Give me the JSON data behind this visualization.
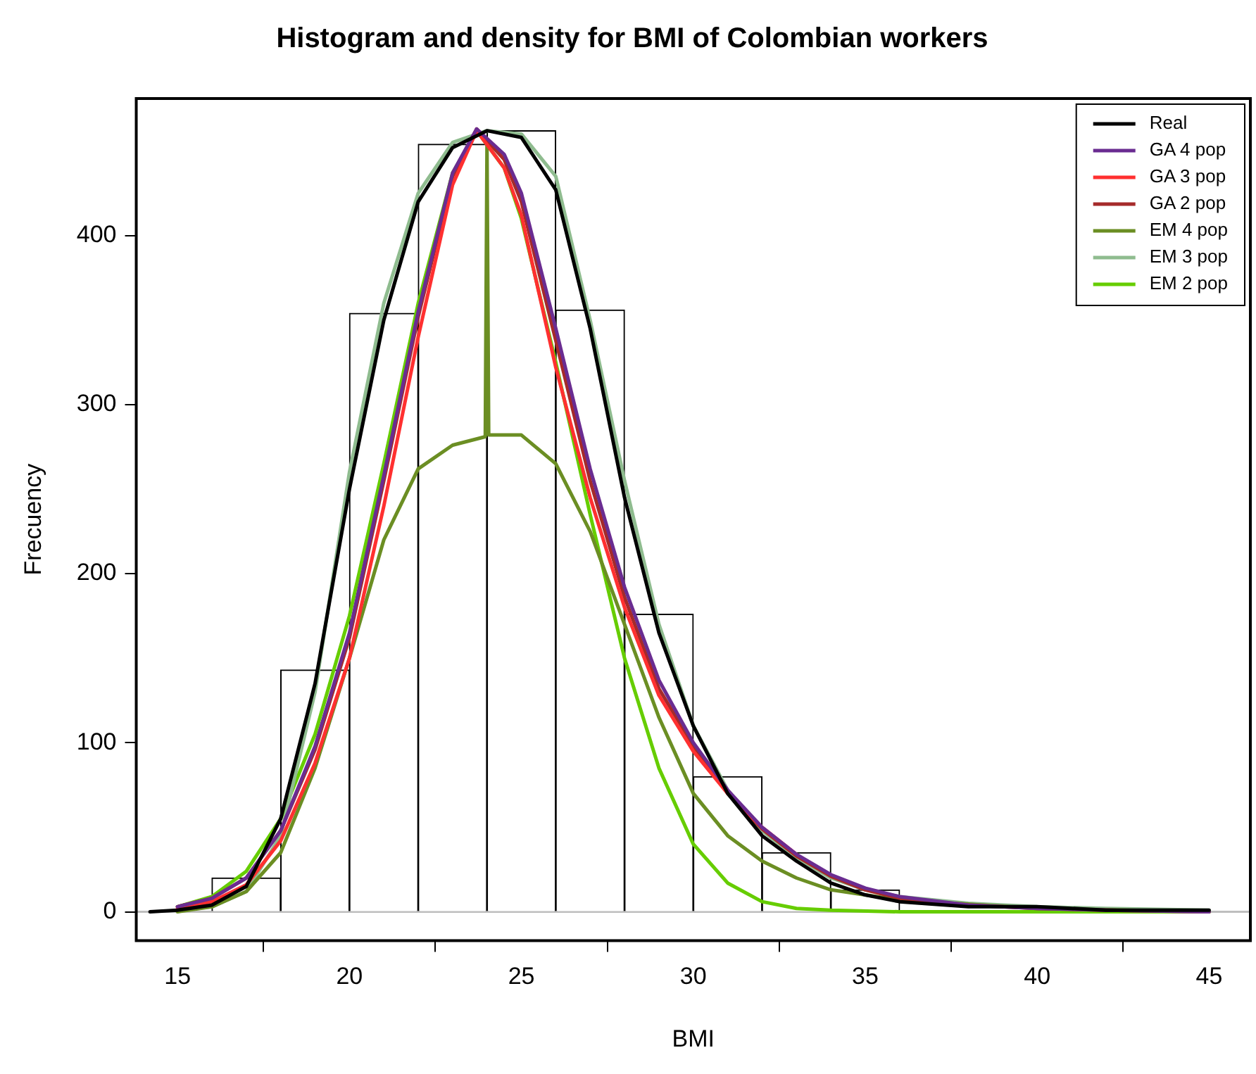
{
  "chart_data": {
    "type": "histogram",
    "title": "Histogram and density for BMI of Colombian workers",
    "xlabel": "BMI",
    "ylabel": "Frecuency",
    "bins": [
      16,
      18,
      20,
      22,
      24,
      26,
      28,
      30,
      32,
      34,
      36
    ],
    "values": [
      20,
      143,
      354,
      454,
      462,
      356,
      176,
      80,
      35,
      13
    ],
    "color": "#ffffff",
    "xlim": [
      13.8,
      46.2
    ],
    "xticks": [
      15,
      20,
      25,
      30,
      35,
      40,
      45
    ],
    "ylim": [
      -17,
      481
    ],
    "yticks": [
      0,
      100,
      200,
      300,
      400
    ],
    "grid": false,
    "legend": "top right",
    "line_style": "solid",
    "marker": "none",
    "ref_lines": [
      {
        "axis": "y",
        "value": 0,
        "color": "#bebebe"
      }
    ],
    "series": [
      {
        "name": "Real",
        "type": "line",
        "color": "#000000",
        "x": [
          14.2,
          15,
          16,
          17,
          18,
          19,
          20,
          21,
          22,
          23,
          24,
          25,
          26,
          27,
          28,
          29,
          30,
          31,
          32,
          33,
          34,
          35,
          36,
          38,
          40,
          42,
          45
        ],
        "values": [
          0,
          1,
          4,
          15,
          55,
          135,
          250,
          350,
          420,
          452,
          462,
          458,
          427,
          345,
          245,
          165,
          110,
          70,
          45,
          30,
          17,
          10,
          6,
          3,
          3,
          1,
          1
        ]
      },
      {
        "name": "GA 4 pop",
        "type": "line",
        "color": "#6a2c91",
        "x": [
          15,
          16,
          17,
          18,
          19,
          20,
          21,
          22,
          23,
          23.7,
          24.5,
          25,
          26,
          27,
          28,
          29,
          30,
          31,
          32,
          33,
          34,
          35,
          36,
          38,
          40,
          42,
          45
        ],
        "values": [
          3,
          8,
          20,
          48,
          98,
          165,
          258,
          355,
          437,
          463,
          448,
          425,
          345,
          262,
          192,
          137,
          100,
          72,
          50,
          34,
          22,
          14,
          9,
          4,
          2,
          1,
          0
        ]
      },
      {
        "name": "GA 3 pop",
        "type": "line",
        "color": "#ff3030",
        "x": [
          15,
          16,
          17,
          18,
          19,
          20,
          21,
          22,
          23,
          23.7,
          24.5,
          25,
          26,
          27,
          28,
          29,
          30,
          31,
          32,
          33
        ],
        "values": [
          2,
          6,
          16,
          42,
          88,
          150,
          240,
          340,
          430,
          462,
          440,
          412,
          322,
          245,
          180,
          128,
          95,
          70,
          50,
          34
        ]
      },
      {
        "name": "GA 2 pop",
        "type": "line",
        "color": "#a52a2a",
        "x": [
          15,
          16,
          17,
          18,
          19,
          20,
          21,
          22,
          23,
          23.7,
          24.5,
          25,
          26,
          27,
          28,
          29,
          30,
          31,
          32,
          33,
          34,
          35,
          36,
          38,
          40,
          42,
          45
        ],
        "values": [
          3,
          8,
          20,
          48,
          96,
          162,
          255,
          352,
          435,
          463,
          445,
          420,
          338,
          255,
          186,
          132,
          98,
          70,
          49,
          33,
          21,
          13,
          8,
          4,
          2,
          1,
          0
        ]
      },
      {
        "name": "EM 4 pop",
        "type": "line",
        "color": "#6b8e23",
        "x": [
          15,
          16,
          17,
          18,
          19,
          20,
          21,
          22,
          23,
          23.95,
          24,
          24.05,
          25,
          26,
          27,
          28,
          29,
          30,
          31,
          32,
          33,
          34,
          36,
          40,
          45
        ],
        "values": [
          0,
          3,
          12,
          35,
          85,
          150,
          220,
          262,
          276,
          281,
          455,
          282,
          282,
          265,
          225,
          170,
          115,
          70,
          45,
          30,
          20,
          13,
          7,
          2,
          0
        ]
      },
      {
        "name": "EM 3 pop",
        "type": "line",
        "color": "#8fbc8f",
        "x": [
          15,
          16,
          17,
          18,
          19,
          20,
          21,
          22,
          23,
          24,
          25,
          26,
          27,
          28,
          29,
          30,
          31,
          32,
          33,
          34,
          35,
          36,
          38,
          40,
          42,
          45
        ],
        "values": [
          1,
          3,
          12,
          45,
          130,
          260,
          360,
          425,
          455,
          462,
          460,
          435,
          350,
          255,
          170,
          110,
          72,
          48,
          32,
          20,
          13,
          9,
          5,
          3,
          2,
          1
        ]
      },
      {
        "name": "EM 2 pop",
        "type": "line",
        "color": "#66cd00",
        "x": [
          15,
          16,
          17,
          18,
          19,
          20,
          21,
          22,
          23,
          23.7,
          24.5,
          25,
          26,
          27,
          28,
          29,
          30,
          31,
          32,
          33,
          34,
          36,
          45
        ],
        "values": [
          3,
          9,
          24,
          55,
          105,
          175,
          265,
          360,
          437,
          462,
          440,
          410,
          325,
          235,
          150,
          85,
          40,
          17,
          6,
          2,
          1,
          0,
          0
        ]
      }
    ]
  }
}
